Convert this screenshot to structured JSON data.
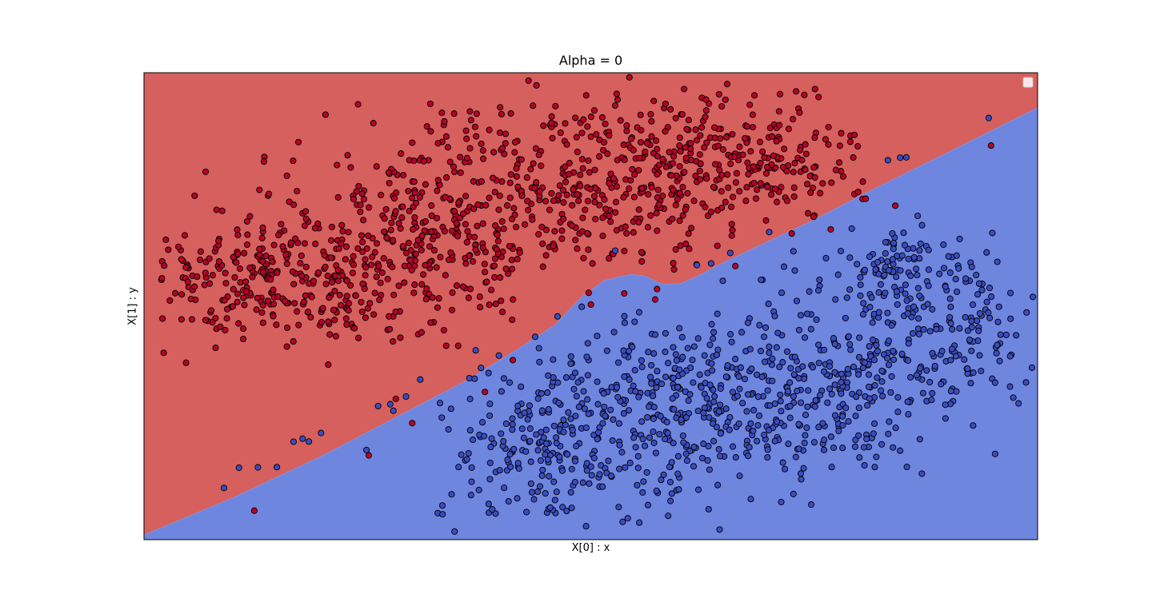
{
  "chart_data": {
    "type": "scatter",
    "title": "Alpha = 0",
    "xlabel": "X[0] : x",
    "ylabel": "X[1] : y",
    "xlim": [
      0,
      100
    ],
    "ylim": [
      0,
      100
    ],
    "grid": false,
    "legend": {
      "placement": "top-right",
      "entries": []
    },
    "regions": [
      {
        "class": "red",
        "color": "#d6605d"
      },
      {
        "class": "blue",
        "color": "#6f86df"
      }
    ],
    "decision_boundary": {
      "x": [
        0,
        10,
        20,
        30,
        36,
        42,
        46,
        49,
        51.5,
        53,
        54.5,
        56,
        58,
        60,
        62,
        65,
        70,
        75,
        80,
        90,
        100
      ],
      "y": [
        1,
        9,
        18,
        28,
        34,
        41,
        46,
        52,
        55.5,
        56.2,
        56.8,
        56.5,
        54.7,
        54.8,
        56.5,
        59.5,
        64,
        68.5,
        73.5,
        83,
        92.5
      ]
    },
    "series": [
      {
        "class": "red",
        "marker_color": "#b40426",
        "clusters": [
          {
            "cx": 14,
            "cy": 56,
            "sx": 8,
            "sy": 7,
            "n": 260
          },
          {
            "cx": 30,
            "cy": 63,
            "sx": 9,
            "sy": 10,
            "n": 300
          },
          {
            "cx": 45,
            "cy": 77,
            "sx": 9,
            "sy": 9,
            "n": 280
          },
          {
            "cx": 60,
            "cy": 79,
            "sx": 7,
            "sy": 9,
            "n": 220
          },
          {
            "cx": 70,
            "cy": 82,
            "sx": 5,
            "sy": 6,
            "n": 120
          }
        ]
      },
      {
        "class": "blue",
        "marker_color": "#3b4cc0",
        "clusters": [
          {
            "cx": 45,
            "cy": 20,
            "sx": 6,
            "sy": 9,
            "n": 200
          },
          {
            "cx": 58,
            "cy": 28,
            "sx": 8,
            "sy": 10,
            "n": 280
          },
          {
            "cx": 74,
            "cy": 30,
            "sx": 8,
            "sy": 10,
            "n": 280
          },
          {
            "cx": 88,
            "cy": 45,
            "sx": 7,
            "sy": 8,
            "n": 200
          },
          {
            "cx": 84,
            "cy": 58,
            "sx": 5,
            "sy": 4,
            "n": 80
          }
        ]
      }
    ]
  }
}
